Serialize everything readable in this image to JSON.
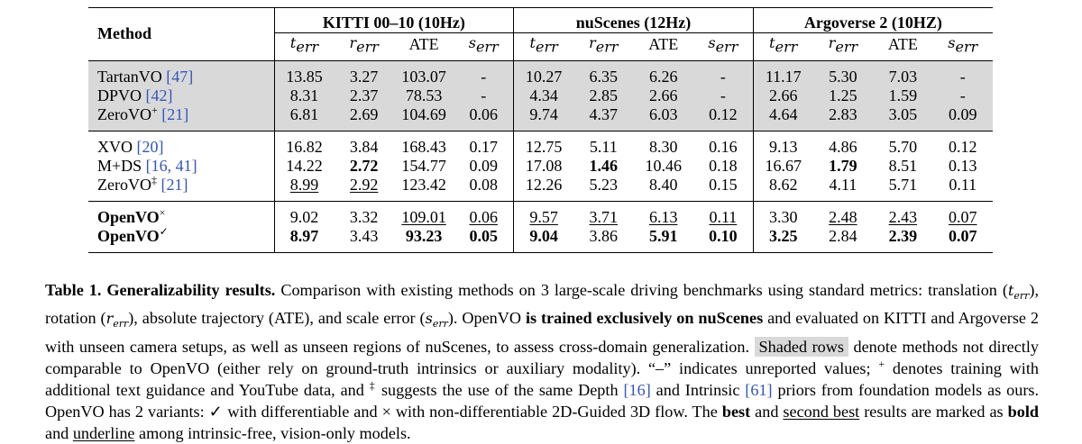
{
  "table": {
    "method_header": "Method",
    "groups": [
      "KITTI 00–10 (10Hz)",
      "nuScenes (12Hz)",
      "Argoverse 2 (10HZ)"
    ],
    "metrics": [
      {
        "base": "t",
        "sub": "err"
      },
      {
        "base": "r",
        "sub": "err"
      },
      {
        "base": "ATE",
        "sub": ""
      },
      {
        "base": "s",
        "sub": "err"
      }
    ],
    "sections": [
      {
        "shaded": true,
        "rows": [
          {
            "method": "TartanVO",
            "mark": "",
            "ref": "[47]",
            "values": [
              "13.85",
              "3.27",
              "103.07",
              "-",
              "10.27",
              "6.35",
              "6.26",
              "-",
              "11.17",
              "5.30",
              "7.03",
              "-"
            ],
            "bold": [],
            "underline": []
          },
          {
            "method": "DPVO",
            "mark": "",
            "ref": "[42]",
            "values": [
              "8.31",
              "2.37",
              "78.53",
              "-",
              "4.34",
              "2.85",
              "2.66",
              "-",
              "2.66",
              "1.25",
              "1.59",
              "-"
            ],
            "bold": [],
            "underline": []
          },
          {
            "method": "ZeroVO",
            "mark": "+",
            "ref": "[21]",
            "values": [
              "6.81",
              "2.69",
              "104.69",
              "0.06",
              "9.74",
              "4.37",
              "6.03",
              "0.12",
              "4.64",
              "2.83",
              "3.05",
              "0.09"
            ],
            "bold": [],
            "underline": []
          }
        ]
      },
      {
        "shaded": false,
        "rows": [
          {
            "method": "XVO",
            "mark": "",
            "ref": "[20]",
            "values": [
              "16.82",
              "3.84",
              "168.43",
              "0.17",
              "12.75",
              "5.11",
              "8.30",
              "0.16",
              "9.13",
              "4.86",
              "5.70",
              "0.12"
            ],
            "bold": [],
            "underline": []
          },
          {
            "method": "M+DS",
            "mark": "",
            "ref": "[16, 41]",
            "values": [
              "14.22",
              "2.72",
              "154.77",
              "0.09",
              "17.08",
              "1.46",
              "10.46",
              "0.18",
              "16.67",
              "1.79",
              "8.51",
              "0.13"
            ],
            "bold": [
              1,
              5,
              9
            ],
            "underline": []
          },
          {
            "method": "ZeroVO",
            "mark": "‡",
            "ref": "[21]",
            "values": [
              "8.99",
              "2.92",
              "123.42",
              "0.08",
              "12.26",
              "5.23",
              "8.40",
              "0.15",
              "8.62",
              "4.11",
              "5.71",
              "0.11"
            ],
            "bold": [],
            "underline": [
              0,
              1
            ]
          }
        ]
      },
      {
        "shaded": false,
        "rows": [
          {
            "method": "OpenVO",
            "mark": "×",
            "ref": "",
            "bold_method": true,
            "values": [
              "9.02",
              "3.32",
              "109.01",
              "0.06",
              "9.57",
              "3.71",
              "6.13",
              "0.11",
              "3.30",
              "2.48",
              "2.43",
              "0.07"
            ],
            "bold": [],
            "underline": [
              2,
              3,
              4,
              5,
              6,
              7,
              9,
              10,
              11
            ]
          },
          {
            "method": "OpenVO",
            "mark": "✓",
            "ref": "",
            "bold_method": true,
            "values": [
              "8.97",
              "3.43",
              "93.23",
              "0.05",
              "9.04",
              "3.86",
              "5.91",
              "0.10",
              "3.25",
              "2.84",
              "2.39",
              "0.07"
            ],
            "bold": [
              0,
              2,
              3,
              4,
              6,
              7,
              8,
              10,
              11
            ],
            "underline": []
          }
        ]
      }
    ]
  },
  "caption": {
    "label": "Table 1.",
    "title": "Generalizability results.",
    "t1": "Comparison with existing methods on 3 large-scale driving benchmarks using standard metrics: translation (",
    "t2": "), rotation (",
    "t3": "), absolute trajectory (ATE), and scale error (",
    "t4": "). OpenVO ",
    "bold1": "is trained exclusively on nuScenes",
    "t5": " and evaluated on KITTI and Argoverse 2 with unseen camera setups, as well as unseen regions of nuScenes, to assess cross-domain generalization.",
    "shaded_label": "Shaded rows",
    "t6": " denote methods not directly comparable to OpenVO (either rely on ground-truth intrinsics or auxiliary modality). “–” indicates unreported values;",
    "plus": "+",
    "t7": " denotes training with additional text guidance and YouTube data, and",
    "dagger": "‡",
    "t8": " suggests the use of the same Depth",
    "ref1": "[16]",
    "t9": " and Intrinsic",
    "ref2": "[61]",
    "t10": " priors from foundation models as ours. OpenVO has 2 variants:",
    "check": "✓",
    "t11": " with differentiable and",
    "cross": "×",
    "t12": " with non-differentiable 2D-Guided 3D flow. The",
    "best": "best",
    "t13": " and",
    "second": "second best",
    "t14": " results are marked as",
    "bold_word": "bold",
    "t15": " and",
    "underline_word": "underline",
    "t16": " among intrinsic-free, vision-only models."
  }
}
